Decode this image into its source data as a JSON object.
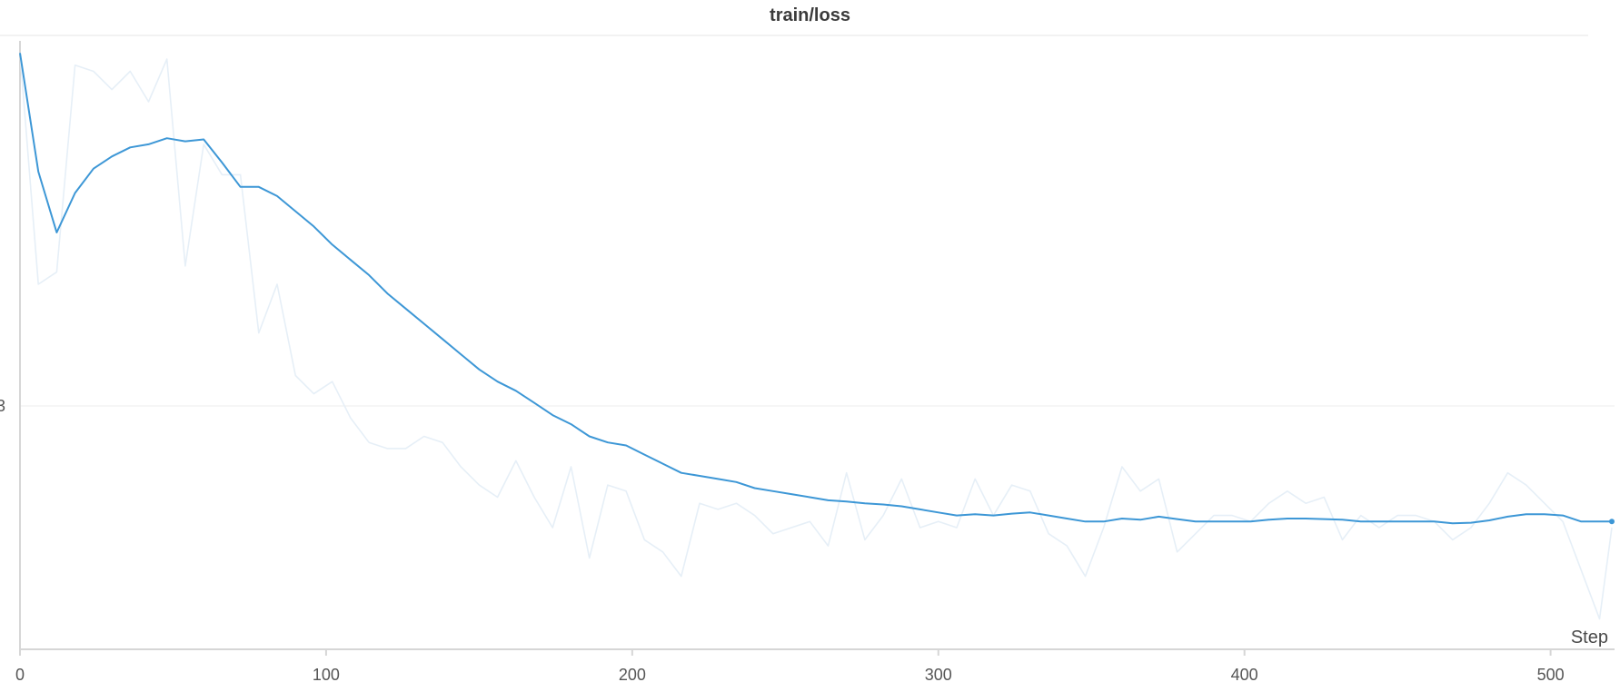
{
  "chart_data": {
    "type": "line",
    "title": "train/loss",
    "xlabel": "Step",
    "ylabel": "",
    "xlim": [
      0,
      520
    ],
    "ylim": [
      0,
      1
    ],
    "x_ticks": [
      0,
      100,
      200,
      300,
      400,
      500
    ],
    "y_ticks": [
      {
        "value": 0.4,
        "label": "3"
      }
    ],
    "grid": true,
    "legend": "none",
    "colors": {
      "smoothed": "#3d97d6",
      "raw": "#e6eff7",
      "axis": "#d6d6d6",
      "grid": "#ececec"
    },
    "series": [
      {
        "role": "smoothed",
        "x": [
          0,
          6,
          12,
          18,
          24,
          30,
          36,
          42,
          48,
          54,
          60,
          66,
          72,
          78,
          84,
          90,
          96,
          102,
          108,
          114,
          120,
          126,
          132,
          138,
          144,
          150,
          156,
          162,
          168,
          174,
          180,
          186,
          192,
          198,
          204,
          210,
          216,
          222,
          228,
          234,
          240,
          246,
          252,
          258,
          264,
          270,
          276,
          282,
          288,
          294,
          300,
          306,
          312,
          318,
          324,
          330,
          336,
          342,
          348,
          354,
          360,
          366,
          372,
          378,
          384,
          390,
          396,
          402,
          408,
          414,
          420,
          426,
          432,
          438,
          444,
          450,
          456,
          462,
          468,
          474,
          480,
          486,
          492,
          498,
          504,
          510,
          516,
          520
        ],
        "y": [
          0.98,
          0.785,
          0.685,
          0.75,
          0.79,
          0.81,
          0.825,
          0.83,
          0.84,
          0.835,
          0.838,
          0.8,
          0.76,
          0.76,
          0.745,
          0.72,
          0.695,
          0.665,
          0.64,
          0.615,
          0.585,
          0.56,
          0.535,
          0.51,
          0.485,
          0.46,
          0.44,
          0.425,
          0.405,
          0.385,
          0.37,
          0.35,
          0.34,
          0.335,
          0.32,
          0.305,
          0.29,
          0.285,
          0.28,
          0.275,
          0.265,
          0.26,
          0.255,
          0.25,
          0.245,
          0.243,
          0.24,
          0.238,
          0.235,
          0.23,
          0.225,
          0.22,
          0.222,
          0.22,
          0.223,
          0.225,
          0.22,
          0.215,
          0.21,
          0.21,
          0.215,
          0.213,
          0.218,
          0.214,
          0.21,
          0.21,
          0.21,
          0.21,
          0.213,
          0.215,
          0.215,
          0.214,
          0.213,
          0.21,
          0.21,
          0.21,
          0.21,
          0.21,
          0.207,
          0.208,
          0.212,
          0.218,
          0.222,
          0.222,
          0.22,
          0.21,
          0.21,
          0.21
        ]
      },
      {
        "role": "raw",
        "x": [
          0,
          6,
          12,
          18,
          24,
          30,
          36,
          42,
          48,
          54,
          60,
          66,
          72,
          78,
          84,
          90,
          96,
          102,
          108,
          114,
          120,
          126,
          132,
          138,
          144,
          150,
          156,
          162,
          168,
          174,
          180,
          186,
          192,
          198,
          204,
          210,
          216,
          222,
          228,
          234,
          240,
          246,
          252,
          258,
          264,
          270,
          276,
          282,
          288,
          294,
          300,
          306,
          312,
          318,
          324,
          330,
          336,
          342,
          348,
          354,
          360,
          366,
          372,
          378,
          384,
          390,
          396,
          402,
          408,
          414,
          420,
          426,
          432,
          438,
          444,
          450,
          456,
          462,
          468,
          474,
          480,
          486,
          492,
          498,
          504,
          510,
          516,
          520
        ],
        "y": [
          0.98,
          0.6,
          0.62,
          0.96,
          0.95,
          0.92,
          0.95,
          0.9,
          0.97,
          0.63,
          0.83,
          0.78,
          0.78,
          0.52,
          0.6,
          0.45,
          0.42,
          0.44,
          0.38,
          0.34,
          0.33,
          0.33,
          0.35,
          0.34,
          0.3,
          0.27,
          0.25,
          0.31,
          0.25,
          0.2,
          0.3,
          0.15,
          0.27,
          0.26,
          0.18,
          0.16,
          0.12,
          0.24,
          0.23,
          0.24,
          0.22,
          0.19,
          0.2,
          0.21,
          0.17,
          0.29,
          0.18,
          0.22,
          0.28,
          0.2,
          0.21,
          0.2,
          0.28,
          0.22,
          0.27,
          0.26,
          0.19,
          0.17,
          0.12,
          0.2,
          0.3,
          0.26,
          0.28,
          0.16,
          0.19,
          0.22,
          0.22,
          0.21,
          0.24,
          0.26,
          0.24,
          0.25,
          0.18,
          0.22,
          0.2,
          0.22,
          0.22,
          0.21,
          0.18,
          0.2,
          0.24,
          0.29,
          0.27,
          0.24,
          0.21,
          0.13,
          0.05,
          0.2
        ]
      }
    ]
  }
}
